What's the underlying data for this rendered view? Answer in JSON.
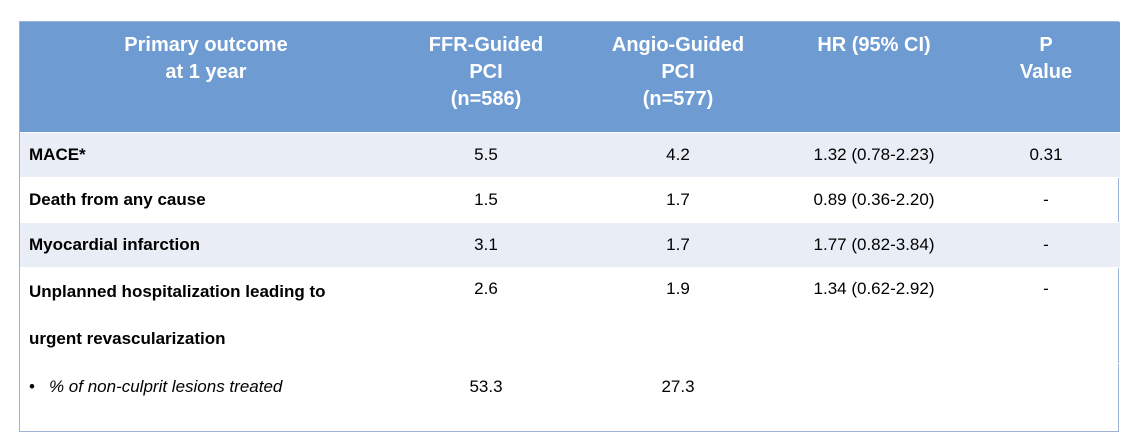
{
  "table": {
    "headers": [
      {
        "lines": [
          "Primary outcome",
          "at 1 year"
        ]
      },
      {
        "lines": [
          "FFR-Guided",
          "PCI",
          "(n=586)"
        ]
      },
      {
        "lines": [
          "Angio-Guided",
          "PCI",
          "(n=577)"
        ]
      },
      {
        "lines": [
          "HR (95% CI)"
        ]
      },
      {
        "lines": [
          "P",
          "Value"
        ]
      }
    ],
    "rows": [
      {
        "label": "MACE*",
        "ffr": "5.5",
        "angio": "4.2",
        "hr": "1.32 (0.78-2.23)",
        "p": "0.31"
      },
      {
        "label": "Death from any cause",
        "ffr": "1.5",
        "angio": "1.7",
        "hr": "0.89 (0.36-2.20)",
        "p": "-"
      },
      {
        "label": "Myocardial infarction",
        "ffr": "3.1",
        "angio": "1.7",
        "hr": "1.77 (0.82-3.84)",
        "p": "-"
      },
      {
        "label_line1": "Unplanned hospitalization leading to",
        "label_line2": "urgent revascularization",
        "ffr": "2.6",
        "angio": "1.9",
        "hr": "1.34 (0.62-2.92)",
        "p": "-"
      },
      {
        "bullet": "•",
        "label": "% of non-culprit lesions treated",
        "ffr": "53.3",
        "angio": "27.3",
        "hr": "",
        "p": ""
      }
    ]
  }
}
